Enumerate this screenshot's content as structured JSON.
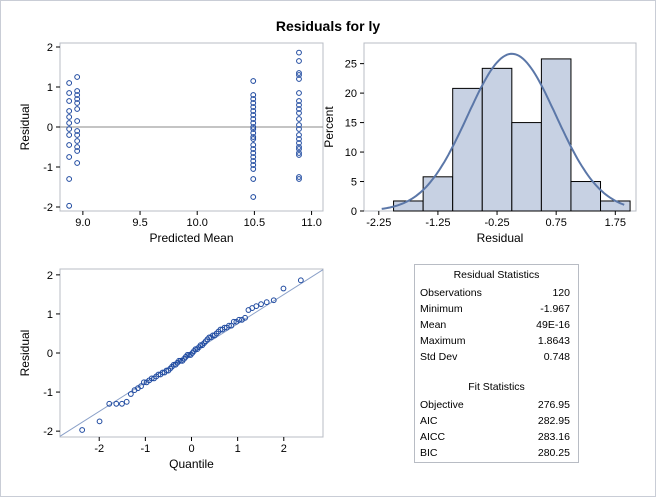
{
  "title": "Residuals for ly",
  "chart_data": [
    {
      "type": "scatter",
      "name": "Residual vs Predicted Mean",
      "xlabel": "Predicted Mean",
      "ylabel": "Residual",
      "xlim": [
        8.8,
        11.1
      ],
      "ylim": [
        -2.1,
        2.1
      ],
      "xticks": [
        "9.0",
        "9.5",
        "10.0",
        "10.5",
        "11.0"
      ],
      "yticks": [
        "-2",
        "-1",
        "0",
        "1",
        "2"
      ],
      "reference_line_y": 0,
      "points": [
        [
          8.88,
          1.1
        ],
        [
          8.88,
          0.85
        ],
        [
          8.88,
          0.65
        ],
        [
          8.88,
          0.4
        ],
        [
          8.88,
          0.25
        ],
        [
          8.88,
          0.1
        ],
        [
          8.88,
          -0.05
        ],
        [
          8.88,
          -0.2
        ],
        [
          8.88,
          -0.45
        ],
        [
          8.88,
          -0.75
        ],
        [
          8.88,
          -1.3
        ],
        [
          8.88,
          -1.97
        ],
        [
          8.95,
          1.25
        ],
        [
          8.95,
          0.9
        ],
        [
          8.95,
          0.8
        ],
        [
          8.95,
          0.7
        ],
        [
          8.95,
          0.6
        ],
        [
          8.95,
          0.45
        ],
        [
          8.95,
          0.15
        ],
        [
          8.95,
          -0.1
        ],
        [
          8.95,
          -0.2
        ],
        [
          8.95,
          -0.35
        ],
        [
          8.95,
          -0.5
        ],
        [
          8.95,
          -0.6
        ],
        [
          8.95,
          -0.9
        ],
        [
          10.49,
          1.15
        ],
        [
          10.49,
          0.8
        ],
        [
          10.49,
          0.7
        ],
        [
          10.49,
          0.6
        ],
        [
          10.49,
          0.5
        ],
        [
          10.49,
          0.4
        ],
        [
          10.49,
          0.3
        ],
        [
          10.49,
          0.2
        ],
        [
          10.49,
          0.1
        ],
        [
          10.49,
          0.0
        ],
        [
          10.49,
          -0.05
        ],
        [
          10.49,
          -0.15
        ],
        [
          10.49,
          -0.25
        ],
        [
          10.49,
          -0.3
        ],
        [
          10.49,
          -0.45
        ],
        [
          10.49,
          -0.55
        ],
        [
          10.49,
          -0.65
        ],
        [
          10.49,
          -0.75
        ],
        [
          10.49,
          -0.85
        ],
        [
          10.49,
          -0.95
        ],
        [
          10.49,
          -1.05
        ],
        [
          10.49,
          -1.3
        ],
        [
          10.49,
          -1.75
        ],
        [
          10.89,
          1.86
        ],
        [
          10.89,
          1.65
        ],
        [
          10.89,
          1.35
        ],
        [
          10.89,
          1.3
        ],
        [
          10.89,
          1.2
        ],
        [
          10.89,
          0.85
        ],
        [
          10.89,
          0.65
        ],
        [
          10.89,
          0.55
        ],
        [
          10.89,
          0.45
        ],
        [
          10.89,
          0.35
        ],
        [
          10.89,
          0.2
        ],
        [
          10.89,
          0.05
        ],
        [
          10.89,
          -0.05
        ],
        [
          10.89,
          -0.2
        ],
        [
          10.89,
          -0.3
        ],
        [
          10.89,
          -0.4
        ],
        [
          10.89,
          -0.5
        ],
        [
          10.89,
          -0.55
        ],
        [
          10.89,
          -0.65
        ],
        [
          10.89,
          -0.7
        ],
        [
          10.89,
          -1.25
        ],
        [
          10.89,
          -1.3
        ]
      ]
    },
    {
      "type": "bar",
      "name": "Histogram of Residual",
      "xlabel": "Residual",
      "ylabel": "Percent",
      "xlim": [
        -2.5,
        2.1
      ],
      "ylim": [
        0,
        28.5
      ],
      "xticks": [
        "-2.25",
        "-1.25",
        "-0.25",
        "0.75",
        "1.75"
      ],
      "yticks": [
        "0",
        "5",
        "10",
        "15",
        "20",
        "25"
      ],
      "bin_width": 0.5,
      "bins": [
        {
          "left": -2.0,
          "percent": 1.7
        },
        {
          "left": -1.5,
          "percent": 5.8
        },
        {
          "left": -1.0,
          "percent": 20.8
        },
        {
          "left": -0.5,
          "percent": 24.2
        },
        {
          "left": 0.0,
          "percent": 15.0
        },
        {
          "left": 0.5,
          "percent": 25.8
        },
        {
          "left": 1.0,
          "percent": 5.0
        },
        {
          "left": 1.5,
          "percent": 1.7
        }
      ],
      "normal_curve": {
        "mean": 0.0,
        "sd": 0.748
      }
    },
    {
      "type": "scatter",
      "name": "Q-Q plot of Residual",
      "xlabel": "Quantile",
      "ylabel": "Residual",
      "xlim": [
        -2.85,
        2.85
      ],
      "ylim": [
        -2.15,
        2.15
      ],
      "xticks": [
        "-2",
        "-1",
        "0",
        "1",
        "2"
      ],
      "yticks": [
        "-2",
        "-1",
        "0",
        "1",
        "2"
      ],
      "reference_line": {
        "intercept": 0.0,
        "slope": 0.748
      }
    }
  ],
  "residual_statistics": {
    "header": "Residual Statistics",
    "rows": [
      {
        "label": "Observations",
        "value": "120"
      },
      {
        "label": "Minimum",
        "value": "-1.967"
      },
      {
        "label": "Mean",
        "value": "49E-16"
      },
      {
        "label": "Maximum",
        "value": "1.8643"
      },
      {
        "label": "Std Dev",
        "value": "0.748"
      }
    ]
  },
  "fit_statistics": {
    "header": "Fit Statistics",
    "rows": [
      {
        "label": "Objective",
        "value": "276.95"
      },
      {
        "label": "AIC",
        "value": "282.95"
      },
      {
        "label": "AICC",
        "value": "283.16"
      },
      {
        "label": "BIC",
        "value": "280.25"
      }
    ]
  },
  "colors": {
    "marker": "#1f4aa0",
    "bar_fill": "#c7d1e3",
    "curve": "#5b77a8",
    "refline": "#888888",
    "qqline": "#8aa0c8",
    "frame": "#b8bcc4"
  }
}
